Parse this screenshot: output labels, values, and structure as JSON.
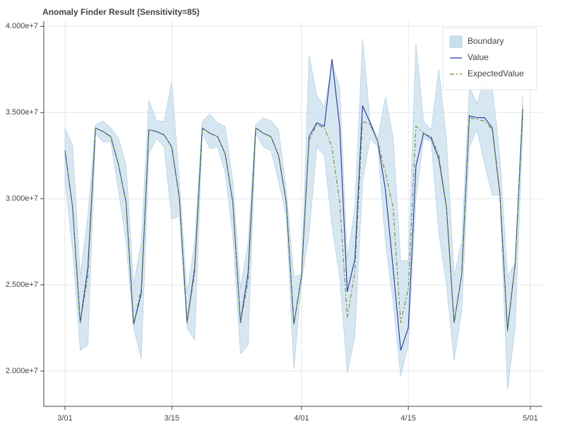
{
  "chart_data": {
    "type": "band-line",
    "title": "Anomaly Finder Result (Sensitivity=85)",
    "x": [
      "3/01",
      "3/02",
      "3/03",
      "3/04",
      "3/05",
      "3/06",
      "3/07",
      "3/08",
      "3/09",
      "3/10",
      "3/11",
      "3/12",
      "3/13",
      "3/14",
      "3/15",
      "3/16",
      "3/17",
      "3/18",
      "3/19",
      "3/20",
      "3/21",
      "3/22",
      "3/23",
      "3/24",
      "3/25",
      "3/26",
      "3/27",
      "3/28",
      "3/29",
      "3/30",
      "3/31",
      "4/01",
      "4/02",
      "4/03",
      "4/04",
      "4/05",
      "4/06",
      "4/07",
      "4/08",
      "4/09",
      "4/10",
      "4/11",
      "4/12",
      "4/13",
      "4/14",
      "4/15",
      "4/16",
      "4/17",
      "4/18",
      "4/19",
      "4/20",
      "4/21",
      "4/22",
      "4/23",
      "4/24",
      "4/25",
      "4/26",
      "4/27",
      "4/28",
      "4/29",
      "4/30"
    ],
    "xticks": [
      "3/01",
      "3/15",
      "4/01",
      "4/15",
      "5/01"
    ],
    "ylim": [
      17950000,
      40300000
    ],
    "yticks": [
      {
        "value": 20000000,
        "label": "2.000e+7"
      },
      {
        "value": 25000000,
        "label": "2.500e+7"
      },
      {
        "value": 30000000,
        "label": "3.000e+7"
      },
      {
        "value": 35000000,
        "label": "3.500e+7"
      },
      {
        "value": 40000000,
        "label": "4.000e+7"
      }
    ],
    "grid": true,
    "legend": "top-right",
    "series": [
      {
        "name": "Boundary",
        "color": "#c9dfee",
        "upper": [
          34100000,
          33100000,
          25500000,
          29000000,
          34300000,
          34500000,
          34100000,
          33500000,
          32000000,
          25000000,
          27500000,
          35700000,
          34500000,
          34500000,
          36800000,
          31000000,
          24500000,
          27500000,
          34500000,
          34900000,
          34400000,
          34200000,
          31000000,
          24800000,
          27500000,
          34300000,
          34700000,
          34500000,
          34000000,
          30500000,
          25500000,
          25600000,
          38300000,
          36000000,
          35300000,
          37800000,
          36500000,
          26500000,
          29500000,
          39300000,
          34500000,
          33500000,
          35900000,
          33600000,
          26400000,
          26400000,
          39000000,
          34500000,
          34000000,
          37500000,
          33500000,
          25500000,
          27500000,
          36500000,
          35500000,
          37000000,
          36500000,
          32500000,
          25500000,
          26300000,
          36000000
        ],
        "lower": [
          31000000,
          27000000,
          21200000,
          21500000,
          33800000,
          33300000,
          33300000,
          30500000,
          27500000,
          22500000,
          20700000,
          32600000,
          33500000,
          33000000,
          28800000,
          29000000,
          22500000,
          21800000,
          33800000,
          32900000,
          33000000,
          31500000,
          27800000,
          21000000,
          21500000,
          33800000,
          33000000,
          32800000,
          31000000,
          29000000,
          20100000,
          25200000,
          28000000,
          33000000,
          32500000,
          28400000,
          25500000,
          19900000,
          22000000,
          31000000,
          33500000,
          33000000,
          27500000,
          24000000,
          19700000,
          21500000,
          30000000,
          33500000,
          33300000,
          28000000,
          25000000,
          20600000,
          23500000,
          33000000,
          34000000,
          32000000,
          30200000,
          30200000,
          18900000,
          22500000,
          34000000
        ]
      },
      {
        "name": "Value",
        "color": "#2633a0",
        "values": [
          32800000,
          29500000,
          22800000,
          26000000,
          34100000,
          33900000,
          33600000,
          32000000,
          29800000,
          22700000,
          24500000,
          34000000,
          33900000,
          33700000,
          33000000,
          30000000,
          22800000,
          26000000,
          34100000,
          33800000,
          33600000,
          32600000,
          29800000,
          22800000,
          25700000,
          34100000,
          33800000,
          33600000,
          32500000,
          29800000,
          22700000,
          25500000,
          33600000,
          34400000,
          34200000,
          38100000,
          34200000,
          24600000,
          26500000,
          35400000,
          34400000,
          33300000,
          30500000,
          26000000,
          21200000,
          22500000,
          31900000,
          33800000,
          33500000,
          32300000,
          29500000,
          22800000,
          25600000,
          34800000,
          34700000,
          34700000,
          34100000,
          30300000,
          22400000,
          26200000,
          35200000
        ]
      },
      {
        "name": "ExpectedValue",
        "color": "#6b8e23",
        "dash": "6 3 2 3",
        "values": [
          32800000,
          29500000,
          22800000,
          25500000,
          34100000,
          33900000,
          33600000,
          32000000,
          29800000,
          22700000,
          24800000,
          34000000,
          33900000,
          33700000,
          33000000,
          30000000,
          22800000,
          25700000,
          34100000,
          33800000,
          33600000,
          32600000,
          29800000,
          22800000,
          25200000,
          34100000,
          33800000,
          33600000,
          32500000,
          29800000,
          22700000,
          25500000,
          33400000,
          34300000,
          34100000,
          33000000,
          29800000,
          23100000,
          25800000,
          34500000,
          34300000,
          33300000,
          31500000,
          29500000,
          22800000,
          24800000,
          34200000,
          33800000,
          33600000,
          32500000,
          29500000,
          22800000,
          25600000,
          34700000,
          34600000,
          34500000,
          34000000,
          30300000,
          22300000,
          26200000,
          35200000
        ]
      }
    ]
  }
}
